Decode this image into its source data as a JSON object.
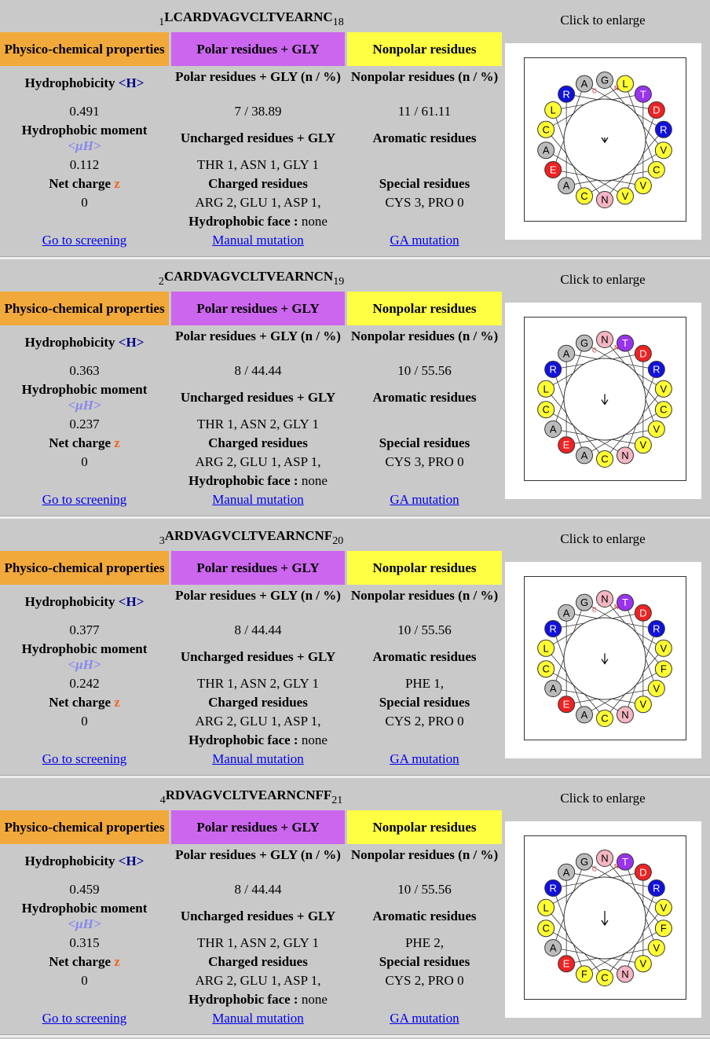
{
  "blocks": [
    {
      "start": "1",
      "seq": "LCARDVAGVCLTVEARNC",
      "end": "18",
      "enlarge": "Click to enlarge",
      "hdr_phys": "Physico-chemical properties",
      "hdr_polar": "Polar residues + GLY",
      "hdr_nonpolar": "Nonpolar residues",
      "hydro_label": "Hydrophobicity",
      "hydro_sym": "<H>",
      "hydro_val": "0.491",
      "polar_n_label": "Polar residues + GLY (n / %)",
      "polar_n_val": "7 / 38.89",
      "nonpolar_n_label": "Nonpolar residues (n / %)",
      "nonpolar_n_val": "11 / 61.11",
      "moment_label": "Hydrophobic moment",
      "moment_sym": "<μH>",
      "moment_val": "0.112",
      "uncharged_label": "Uncharged residues + GLY",
      "uncharged_val": "THR 1, ASN 1, GLY 1",
      "aromatic_label": "Aromatic residues",
      "aromatic_val": "",
      "net_label": "Net charge",
      "net_sym": "z",
      "net_val": "0",
      "charged_label": "Charged residues",
      "charged_val": "ARG 2, GLU 1, ASP 1,",
      "special_label": "Special residues",
      "special_val": "CYS 3, PRO 0",
      "face_label": "Hydrophobic face :",
      "face_val": "none",
      "link_screen": "Go to screening",
      "link_manual": "Manual mutation",
      "link_ga": "GA mutation",
      "wheel": [
        {
          "r": "G",
          "c": "gray"
        },
        {
          "r": "L",
          "c": "yellow"
        },
        {
          "r": "T",
          "c": "purple"
        },
        {
          "r": "D",
          "c": "red"
        },
        {
          "r": "R",
          "c": "blue"
        },
        {
          "r": "V",
          "c": "yellow"
        },
        {
          "r": "C",
          "c": "yellow"
        },
        {
          "r": "V",
          "c": "yellow"
        },
        {
          "r": "V",
          "c": "yellow"
        },
        {
          "r": "N",
          "c": "pink"
        },
        {
          "r": "C",
          "c": "yellow"
        },
        {
          "r": "A",
          "c": "gray"
        },
        {
          "r": "E",
          "c": "red"
        },
        {
          "r": "A",
          "c": "gray"
        },
        {
          "r": "C",
          "c": "yellow"
        },
        {
          "r": "L",
          "c": "yellow"
        },
        {
          "r": "R",
          "c": "blue"
        },
        {
          "r": "A",
          "c": "gray"
        }
      ],
      "n_label": "N",
      "c_label": "C",
      "arrow_len": 0.1
    },
    {
      "start": "2",
      "seq": "CARDVAGVCLTVEARNCN",
      "end": "19",
      "enlarge": "Click to enlarge",
      "hdr_phys": "Physico-chemical properties",
      "hdr_polar": "Polar residues + GLY",
      "hdr_nonpolar": "Nonpolar residues",
      "hydro_label": "Hydrophobicity",
      "hydro_sym": "<H>",
      "hydro_val": "0.363",
      "polar_n_label": "Polar residues + GLY (n / %)",
      "polar_n_val": "8 / 44.44",
      "nonpolar_n_label": "Nonpolar residues (n / %)",
      "nonpolar_n_val": "10 / 55.56",
      "moment_label": "Hydrophobic moment",
      "moment_sym": "<μH>",
      "moment_val": "0.237",
      "uncharged_label": "Uncharged residues + GLY",
      "uncharged_val": "THR 1, ASN 2, GLY 1",
      "aromatic_label": "Aromatic residues",
      "aromatic_val": "",
      "net_label": "Net charge",
      "net_sym": "z",
      "net_val": "0",
      "charged_label": "Charged residues",
      "charged_val": "ARG 2, GLU 1, ASP 1,",
      "special_label": "Special residues",
      "special_val": "CYS 3, PRO 0",
      "face_label": "Hydrophobic face :",
      "face_val": "none",
      "link_screen": "Go to screening",
      "link_manual": "Manual mutation",
      "link_ga": "GA mutation",
      "wheel": [
        {
          "r": "N",
          "c": "pink"
        },
        {
          "r": "T",
          "c": "purple"
        },
        {
          "r": "D",
          "c": "red"
        },
        {
          "r": "R",
          "c": "blue"
        },
        {
          "r": "V",
          "c": "yellow"
        },
        {
          "r": "C",
          "c": "yellow"
        },
        {
          "r": "V",
          "c": "yellow"
        },
        {
          "r": "V",
          "c": "yellow"
        },
        {
          "r": "N",
          "c": "pink"
        },
        {
          "r": "C",
          "c": "yellow"
        },
        {
          "r": "A",
          "c": "gray"
        },
        {
          "r": "E",
          "c": "red"
        },
        {
          "r": "A",
          "c": "gray"
        },
        {
          "r": "C",
          "c": "yellow"
        },
        {
          "r": "L",
          "c": "yellow"
        },
        {
          "r": "R",
          "c": "blue"
        },
        {
          "r": "A",
          "c": "gray"
        },
        {
          "r": "G",
          "c": "gray"
        }
      ],
      "n_label": "N",
      "c_label": "C",
      "arrow_len": 0.22
    },
    {
      "start": "3",
      "seq": "ARDVAGVCLTVEARNCNF",
      "end": "20",
      "enlarge": "Click to enlarge",
      "hdr_phys": "Physico-chemical properties",
      "hdr_polar": "Polar residues + GLY",
      "hdr_nonpolar": "Nonpolar residues",
      "hydro_label": "Hydrophobicity",
      "hydro_sym": "<H>",
      "hydro_val": "0.377",
      "polar_n_label": "Polar residues + GLY (n / %)",
      "polar_n_val": "8 / 44.44",
      "nonpolar_n_label": "Nonpolar residues (n / %)",
      "nonpolar_n_val": "10 / 55.56",
      "moment_label": "Hydrophobic moment",
      "moment_sym": "<μH>",
      "moment_val": "0.242",
      "uncharged_label": "Uncharged residues + GLY",
      "uncharged_val": "THR 1, ASN 2, GLY 1",
      "aromatic_label": "Aromatic residues",
      "aromatic_val": "PHE 1,",
      "net_label": "Net charge",
      "net_sym": "z",
      "net_val": "0",
      "charged_label": "Charged residues",
      "charged_val": "ARG 2, GLU 1, ASP 1,",
      "special_label": "Special residues",
      "special_val": "CYS 2, PRO 0",
      "face_label": "Hydrophobic face :",
      "face_val": "none",
      "link_screen": "Go to screening",
      "link_manual": "Manual mutation",
      "link_ga": "GA mutation",
      "wheel": [
        {
          "r": "N",
          "c": "pink"
        },
        {
          "r": "T",
          "c": "purple"
        },
        {
          "r": "D",
          "c": "red"
        },
        {
          "r": "R",
          "c": "blue"
        },
        {
          "r": "V",
          "c": "yellow"
        },
        {
          "r": "F",
          "c": "yellow"
        },
        {
          "r": "V",
          "c": "yellow"
        },
        {
          "r": "V",
          "c": "yellow"
        },
        {
          "r": "N",
          "c": "pink"
        },
        {
          "r": "C",
          "c": "yellow"
        },
        {
          "r": "A",
          "c": "gray"
        },
        {
          "r": "E",
          "c": "red"
        },
        {
          "r": "A",
          "c": "gray"
        },
        {
          "r": "C",
          "c": "yellow"
        },
        {
          "r": "L",
          "c": "yellow"
        },
        {
          "r": "R",
          "c": "blue"
        },
        {
          "r": "A",
          "c": "gray"
        },
        {
          "r": "G",
          "c": "gray"
        }
      ],
      "n_label": "N",
      "c_label": "C",
      "arrow_len": 0.22
    },
    {
      "start": "4",
      "seq": "RDVAGVCLTVEARNCNFF",
      "end": "21",
      "enlarge": "Click to enlarge",
      "hdr_phys": "Physico-chemical properties",
      "hdr_polar": "Polar residues + GLY",
      "hdr_nonpolar": "Nonpolar residues",
      "hydro_label": "Hydrophobicity",
      "hydro_sym": "<H>",
      "hydro_val": "0.459",
      "polar_n_label": "Polar residues + GLY (n / %)",
      "polar_n_val": "8 / 44.44",
      "nonpolar_n_label": "Nonpolar residues (n / %)",
      "nonpolar_n_val": "10 / 55.56",
      "moment_label": "Hydrophobic moment",
      "moment_sym": "<μH>",
      "moment_val": "0.315",
      "uncharged_label": "Uncharged residues + GLY",
      "uncharged_val": "THR 1, ASN 2, GLY 1",
      "aromatic_label": "Aromatic residues",
      "aromatic_val": "PHE 2,",
      "net_label": "Net charge",
      "net_sym": "z",
      "net_val": "0",
      "charged_label": "Charged residues",
      "charged_val": "ARG 2, GLU 1, ASP 1,",
      "special_label": "Special residues",
      "special_val": "CYS 2, PRO 0",
      "face_label": "Hydrophobic face :",
      "face_val": "none",
      "link_screen": "Go to screening",
      "link_manual": "Manual mutation",
      "link_ga": "GA mutation",
      "wheel": [
        {
          "r": "N",
          "c": "pink"
        },
        {
          "r": "T",
          "c": "purple"
        },
        {
          "r": "D",
          "c": "red"
        },
        {
          "r": "R",
          "c": "blue"
        },
        {
          "r": "V",
          "c": "yellow"
        },
        {
          "r": "F",
          "c": "yellow"
        },
        {
          "r": "V",
          "c": "yellow"
        },
        {
          "r": "V",
          "c": "yellow"
        },
        {
          "r": "N",
          "c": "pink"
        },
        {
          "r": "C",
          "c": "yellow"
        },
        {
          "r": "F",
          "c": "yellow"
        },
        {
          "r": "E",
          "c": "red"
        },
        {
          "r": "A",
          "c": "gray"
        },
        {
          "r": "C",
          "c": "yellow"
        },
        {
          "r": "L",
          "c": "yellow"
        },
        {
          "r": "R",
          "c": "blue"
        },
        {
          "r": "A",
          "c": "gray"
        },
        {
          "r": "G",
          "c": "gray"
        }
      ],
      "n_label": "N",
      "c_label": "C",
      "arrow_len": 0.3
    }
  ],
  "colors": {
    "gray": "#bbbbbb",
    "yellow": "#ffff33",
    "purple": "#9933ee",
    "red": "#ee2222",
    "blue": "#1111dd",
    "pink": "#f4b6c2",
    "orange_header": "#f2a93b",
    "purple_header": "#cc66ee",
    "yellow_header": "#ffff44"
  }
}
